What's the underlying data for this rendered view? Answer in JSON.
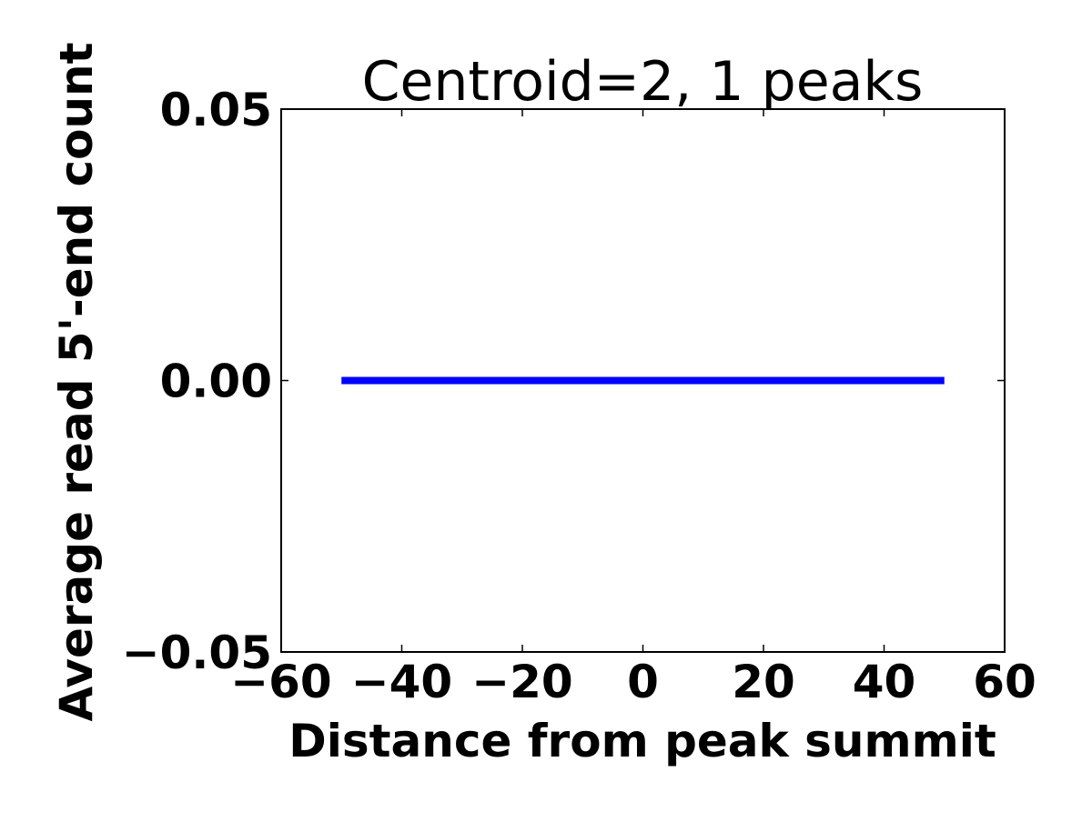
{
  "chart_data": {
    "type": "line",
    "title": "Centroid=2, 1 peaks",
    "xlabel": "Distance from peak summit",
    "ylabel": "Average read 5'-end count",
    "xlim": [
      -60,
      60
    ],
    "ylim": [
      -0.05,
      0.05
    ],
    "xticks": [
      -60,
      -40,
      -20,
      0,
      20,
      40,
      60
    ],
    "xtick_labels": [
      "−60",
      "−40",
      "−20",
      "0",
      "20",
      "40",
      "60"
    ],
    "yticks": [
      -0.05,
      0.0,
      0.05
    ],
    "ytick_labels": [
      "−0.05",
      "0.00",
      "0.05"
    ],
    "grid": false,
    "series": [
      {
        "color": "#0000ff",
        "x": [
          -50,
          50
        ],
        "y": [
          0,
          0
        ]
      }
    ]
  }
}
